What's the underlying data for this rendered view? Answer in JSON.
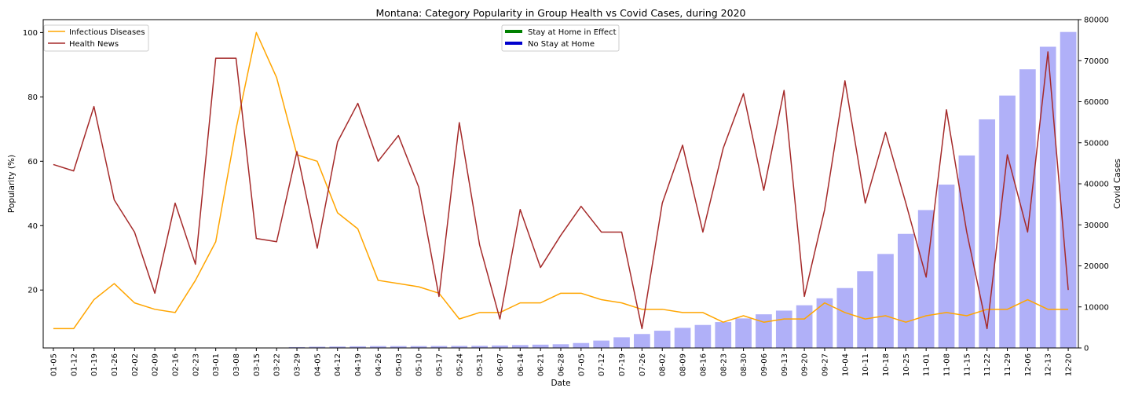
{
  "chart_data": {
    "type": "bar+line",
    "title": "Montana: Category Popularity in Group Health vs Covid Cases, during 2020",
    "xlabel": "Date",
    "ylabel_left": "Popularity (%)",
    "ylabel_right": "Covid Cases",
    "ylim_left": [
      2,
      104
    ],
    "ylim_right": [
      0,
      80000
    ],
    "yticks_left": [
      20,
      40,
      60,
      80,
      100
    ],
    "yticks_right": [
      0,
      10000,
      20000,
      30000,
      40000,
      50000,
      60000,
      70000,
      80000
    ],
    "grid": false,
    "legend_left_position": "top-left",
    "legend_right_position": "top-center",
    "categories": [
      "01-05",
      "01-12",
      "01-19",
      "01-26",
      "02-02",
      "02-09",
      "02-16",
      "02-23",
      "03-01",
      "03-08",
      "03-15",
      "03-22",
      "03-29",
      "04-05",
      "04-12",
      "04-19",
      "04-26",
      "05-03",
      "05-10",
      "05-17",
      "05-24",
      "05-31",
      "06-07",
      "06-14",
      "06-21",
      "06-28",
      "07-05",
      "07-12",
      "07-19",
      "07-26",
      "08-02",
      "08-09",
      "08-16",
      "08-23",
      "08-30",
      "09-06",
      "09-13",
      "09-20",
      "09-27",
      "10-04",
      "10-11",
      "10-18",
      "10-25",
      "11-01",
      "11-08",
      "11-15",
      "11-22",
      "11-29",
      "12-06",
      "12-13",
      "12-20"
    ],
    "series": [
      {
        "name": "Infectious Diseases",
        "type": "line",
        "axis": "left",
        "color": "#ffa500",
        "values": [
          8,
          8,
          17,
          22,
          16,
          14,
          13,
          23,
          35,
          70,
          100,
          86,
          62,
          60,
          44,
          39,
          23,
          22,
          21,
          19,
          11,
          13,
          13,
          16,
          16,
          19,
          19,
          17,
          16,
          14,
          14,
          13,
          13,
          10,
          12,
          10,
          11,
          11,
          16,
          13,
          11,
          12,
          10,
          12,
          13,
          12,
          14,
          14,
          17,
          14,
          14
        ]
      },
      {
        "name": "Health News",
        "type": "line",
        "axis": "left",
        "color": "#a52a2a",
        "values": [
          59,
          57,
          77,
          48,
          38,
          19,
          47,
          28,
          92,
          92,
          36,
          35,
          63,
          33,
          66,
          78,
          60,
          68,
          52,
          18,
          72,
          34,
          11,
          45,
          27,
          37,
          46,
          38,
          38,
          8,
          47,
          65,
          38,
          64,
          81,
          51,
          82,
          18,
          45,
          85,
          47,
          69,
          47,
          24,
          76,
          38,
          8,
          62,
          38,
          94,
          20
        ]
      },
      {
        "name": "Covid Cases",
        "type": "bar",
        "axis": "right",
        "color": "#b0b0f8",
        "values": [
          0,
          0,
          0,
          0,
          0,
          0,
          0,
          0,
          0,
          0,
          0,
          0,
          200,
          300,
          350,
          400,
          450,
          450,
          450,
          480,
          500,
          520,
          600,
          700,
          800,
          900,
          1200,
          1800,
          2600,
          3400,
          4200,
          4900,
          5600,
          6300,
          7200,
          8200,
          9100,
          10400,
          12100,
          14600,
          18700,
          22900,
          27800,
          33600,
          39800,
          46900,
          55700,
          61500,
          67900,
          73400,
          77000
        ]
      }
    ],
    "stay_home_legend": [
      {
        "label": "Stay at Home in Effect",
        "color": "#008000"
      },
      {
        "label": "No Stay at Home",
        "color": "#0000cd"
      }
    ]
  }
}
